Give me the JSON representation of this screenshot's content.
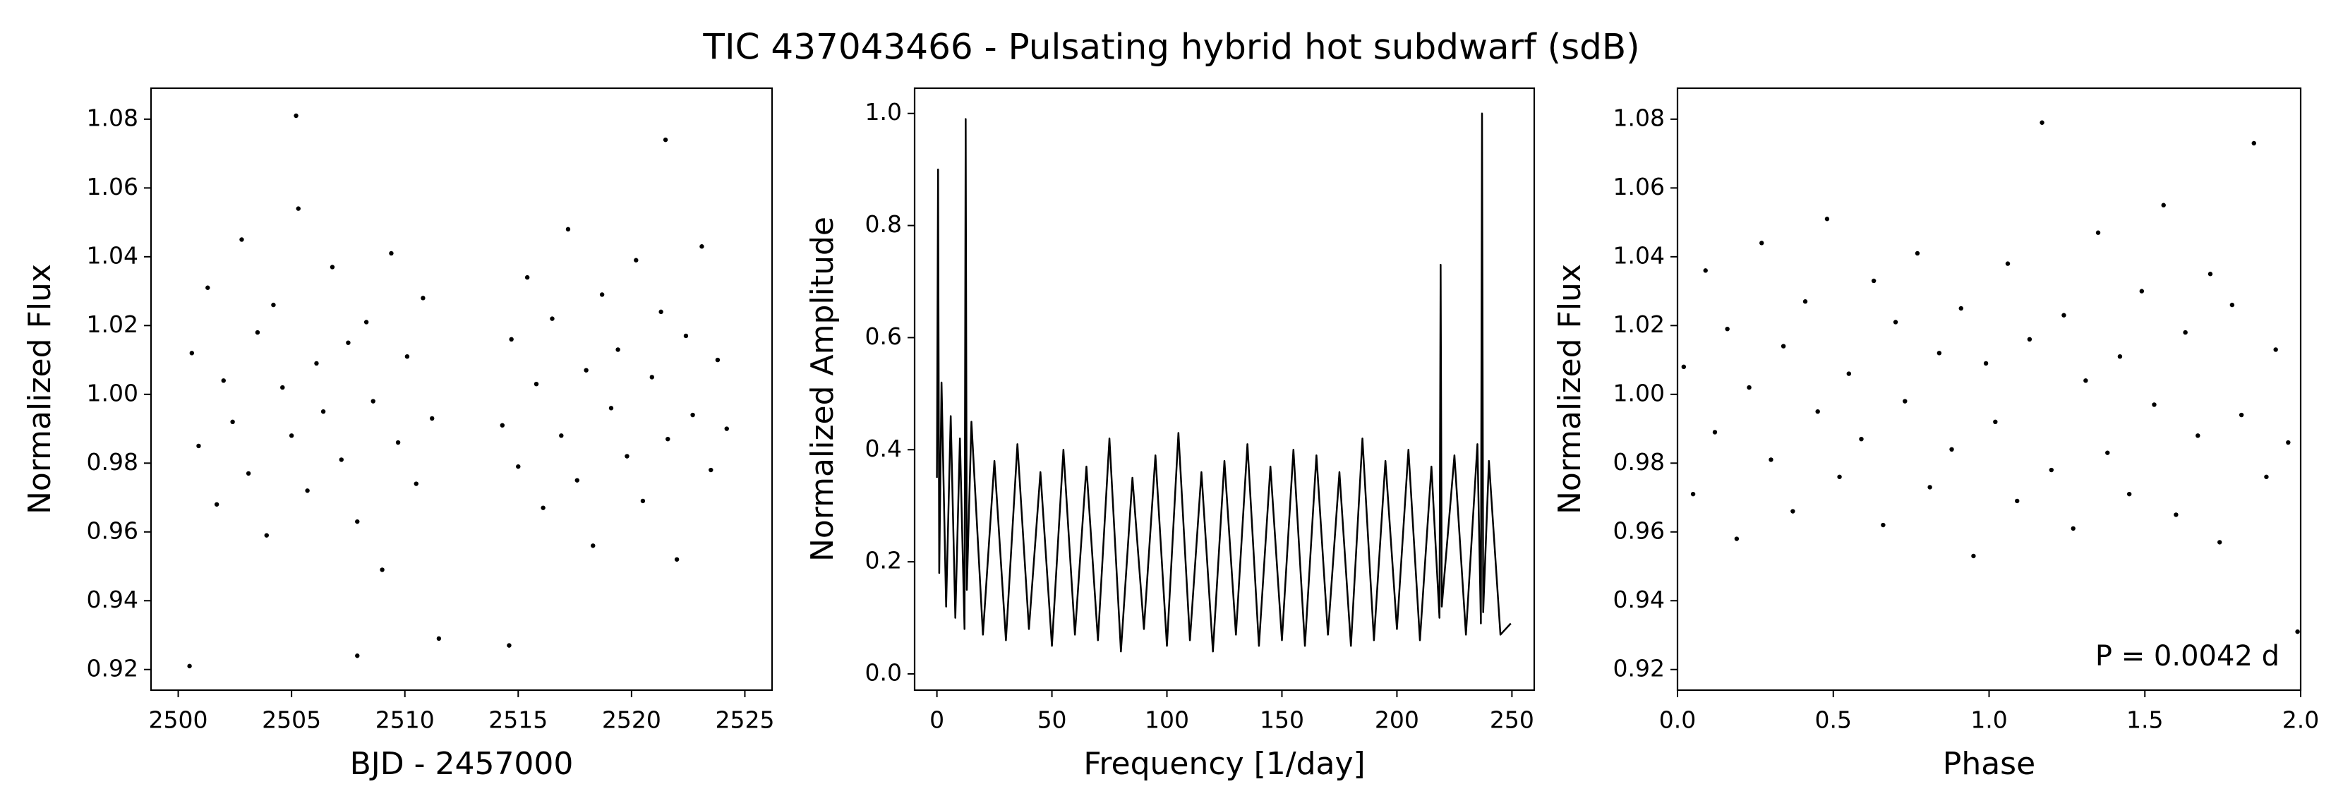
{
  "title": "TIC 437043466 - Pulsating hybrid hot subdwarf (sdB)",
  "chart_data": [
    {
      "type": "scatter",
      "xlabel": "BJD - 2457000",
      "ylabel": "Normalized Flux",
      "color": "#000000",
      "x": [
        2500.6,
        2500.9,
        2501.3,
        2501.7,
        2502.0,
        2502.4,
        2502.8,
        2503.1,
        2503.5,
        2503.9,
        2504.2,
        2504.6,
        2505.0,
        2505.3,
        2505.7,
        2506.1,
        2506.4,
        2506.8,
        2507.2,
        2507.5,
        2507.9,
        2508.3,
        2508.6,
        2509.0,
        2509.4,
        2509.7,
        2510.1,
        2510.5,
        2510.8,
        2511.2,
        2514.3,
        2514.7,
        2515.0,
        2515.4,
        2515.8,
        2516.1,
        2516.5,
        2516.9,
        2517.2,
        2517.6,
        2518.0,
        2518.3,
        2518.7,
        2519.1,
        2519.4,
        2519.8,
        2520.2,
        2520.5,
        2520.9,
        2521.3,
        2521.6,
        2522.0,
        2522.4,
        2522.7,
        2523.1,
        2523.5,
        2523.8,
        2524.2,
        2500.5,
        2505.2,
        2507.9,
        2511.5,
        2521.5,
        2514.6
      ],
      "values": [
        1.012,
        0.985,
        1.031,
        0.968,
        1.004,
        0.992,
        1.045,
        0.977,
        1.018,
        0.959,
        1.026,
        1.002,
        0.988,
        1.054,
        0.972,
        1.009,
        0.995,
        1.037,
        0.981,
        1.015,
        0.963,
        1.021,
        0.998,
        0.949,
        1.041,
        0.986,
        1.011,
        0.974,
        1.028,
        0.993,
        0.991,
        1.016,
        0.979,
        1.034,
        1.003,
        0.967,
        1.022,
        0.988,
        1.048,
        0.975,
        1.007,
        0.956,
        1.029,
        0.996,
        1.013,
        0.982,
        1.039,
        0.969,
        1.005,
        1.024,
        0.987,
        0.952,
        1.017,
        0.994,
        1.043,
        0.978,
        1.01,
        0.99,
        0.921,
        1.081,
        0.924,
        0.929,
        1.074,
        0.927
      ],
      "xlim": [
        2498.8,
        2526.2
      ],
      "ylim": [
        0.914,
        1.089
      ],
      "xticks": [
        2500,
        2505,
        2510,
        2515,
        2520,
        2525
      ],
      "yticks": [
        0.92,
        0.94,
        0.96,
        0.98,
        {
          "value": 1,
          "label": "1.00"
        },
        1.02,
        1.04,
        1.06,
        1.08
      ]
    },
    {
      "type": "line",
      "xlabel": "Frequency [1/day]",
      "ylabel": "Normalized Amplitude",
      "color": "#000000",
      "x": [
        0,
        0.5,
        1,
        2,
        4,
        6,
        8,
        10,
        12,
        12.5,
        13,
        15,
        20,
        25,
        30,
        35,
        40,
        45,
        50,
        55,
        60,
        65,
        70,
        75,
        80,
        85,
        90,
        95,
        100,
        105,
        110,
        115,
        120,
        125,
        130,
        135,
        140,
        145,
        150,
        155,
        160,
        165,
        170,
        175,
        180,
        185,
        190,
        195,
        200,
        205,
        210,
        215,
        218.5,
        219,
        219.5,
        225,
        230,
        235,
        236.5,
        237,
        237.5,
        240,
        245,
        249.5
      ],
      "values": [
        0.35,
        0.9,
        0.18,
        0.52,
        0.12,
        0.46,
        0.1,
        0.42,
        0.08,
        0.99,
        0.15,
        0.45,
        0.07,
        0.38,
        0.06,
        0.41,
        0.08,
        0.36,
        0.05,
        0.4,
        0.07,
        0.37,
        0.06,
        0.42,
        0.04,
        0.35,
        0.08,
        0.39,
        0.05,
        0.43,
        0.06,
        0.36,
        0.04,
        0.38,
        0.07,
        0.41,
        0.05,
        0.37,
        0.06,
        0.4,
        0.05,
        0.39,
        0.07,
        0.36,
        0.05,
        0.42,
        0.06,
        0.38,
        0.08,
        0.4,
        0.06,
        0.37,
        0.1,
        0.73,
        0.12,
        0.39,
        0.07,
        0.41,
        0.09,
        1.0,
        0.11,
        0.38,
        0.07,
        0.09
      ],
      "xlim": [
        -9.7,
        259.7
      ],
      "ylim": [
        -0.029,
        1.045
      ],
      "xticks": [
        0,
        50,
        100,
        150,
        200,
        250
      ],
      "yticks": [
        {
          "value": 0,
          "label": "0.0"
        },
        0.2,
        0.4,
        0.6,
        0.8,
        {
          "value": 1,
          "label": "1.0"
        }
      ]
    },
    {
      "type": "scatter",
      "xlabel": "Phase",
      "ylabel": "Normalized Flux",
      "color": "#000000",
      "annotation": "P = 0.0042 d",
      "x": [
        0.02,
        0.05,
        0.09,
        0.12,
        0.16,
        0.19,
        0.23,
        0.27,
        0.3,
        0.34,
        0.37,
        0.41,
        0.45,
        0.48,
        0.52,
        0.55,
        0.59,
        0.63,
        0.66,
        0.7,
        0.73,
        0.77,
        0.81,
        0.84,
        0.88,
        0.91,
        0.95,
        0.99,
        1.02,
        1.06,
        1.09,
        1.13,
        1.17,
        1.2,
        1.24,
        1.27,
        1.31,
        1.35,
        1.38,
        1.42,
        1.45,
        1.49,
        1.53,
        1.56,
        1.6,
        1.63,
        1.67,
        1.71,
        1.74,
        1.78,
        1.81,
        1.85,
        1.89,
        1.92,
        1.96,
        1.99
      ],
      "values": [
        1.008,
        0.971,
        1.036,
        0.989,
        1.019,
        0.958,
        1.002,
        1.044,
        0.981,
        1.014,
        0.966,
        1.027,
        0.995,
        1.051,
        0.976,
        1.006,
        0.987,
        1.033,
        0.962,
        1.021,
        0.998,
        1.041,
        0.973,
        1.012,
        0.984,
        1.025,
        0.953,
        1.009,
        0.992,
        1.038,
        0.969,
        1.016,
        1.079,
        0.978,
        1.023,
        0.961,
        1.004,
        1.047,
        0.983,
        1.011,
        0.971,
        1.03,
        0.997,
        1.055,
        0.965,
        1.018,
        0.988,
        1.035,
        0.957,
        1.026,
        0.994,
        1.073,
        0.976,
        1.013,
        0.986,
        0.931
      ],
      "xlim": [
        0,
        2
      ],
      "ylim": [
        0.914,
        1.089
      ],
      "xticks": [
        {
          "value": 0,
          "label": "0.0"
        },
        0.5,
        {
          "value": 1,
          "label": "1.0"
        },
        1.5,
        {
          "value": 2,
          "label": "2.0"
        }
      ],
      "yticks": [
        0.92,
        0.94,
        0.96,
        0.98,
        {
          "value": 1,
          "label": "1.00"
        },
        1.02,
        1.04,
        1.06,
        1.08
      ]
    }
  ]
}
